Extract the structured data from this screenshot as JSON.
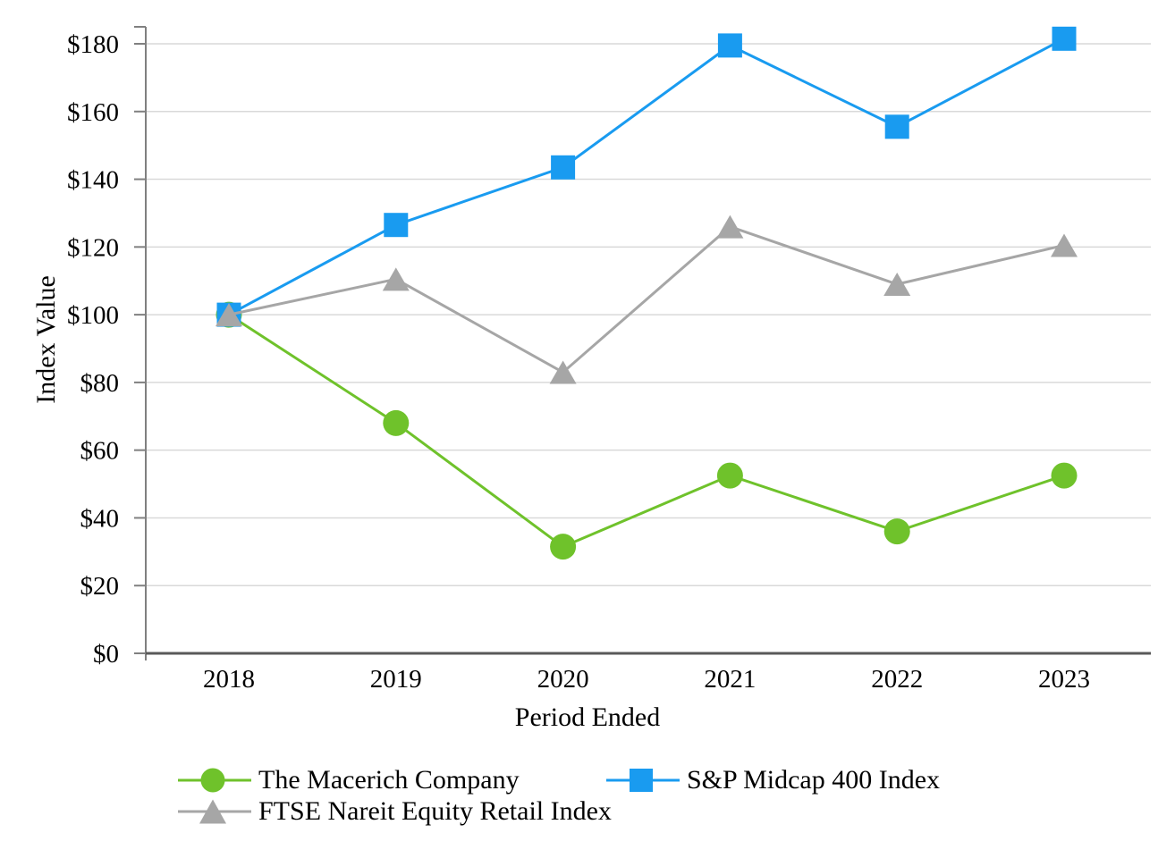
{
  "chart_data": {
    "type": "line",
    "title": "",
    "xlabel": "Period Ended",
    "ylabel": "Index Value",
    "categories": [
      "2018",
      "2019",
      "2020",
      "2021",
      "2022",
      "2023"
    ],
    "ylim": [
      0,
      180
    ],
    "y_tick_step": 20,
    "y_tick_values": [
      0,
      20,
      40,
      60,
      80,
      100,
      120,
      140,
      160,
      180
    ],
    "y_tick_labels": [
      "$0",
      "$20",
      "$40",
      "$60",
      "$80",
      "$100",
      "$120",
      "$140",
      "$160",
      "$180"
    ],
    "grid": "horizontal-on",
    "legend_position": "bottom",
    "series": [
      {
        "name": "The Macerich Company",
        "marker": "circle",
        "color": "#6FC22B",
        "values": [
          100,
          68,
          31.5,
          52.5,
          36,
          52.5
        ]
      },
      {
        "name": "S&P Midcap 400 Index",
        "marker": "square",
        "color": "#199BF0",
        "values": [
          100,
          126.5,
          143.5,
          179.5,
          155.5,
          181.5
        ]
      },
      {
        "name": "FTSE Nareit Equity Retail Index",
        "marker": "triangle",
        "color": "#A6A6A6",
        "values": [
          100,
          110.5,
          83,
          126,
          109,
          120.5
        ]
      }
    ]
  },
  "colors": {
    "gridline": "#D9D9D9",
    "y_axis_line": "#808080",
    "x_axis_line": "#595959",
    "tick": "#808080",
    "text": "#000000",
    "background": "#FFFFFF"
  }
}
